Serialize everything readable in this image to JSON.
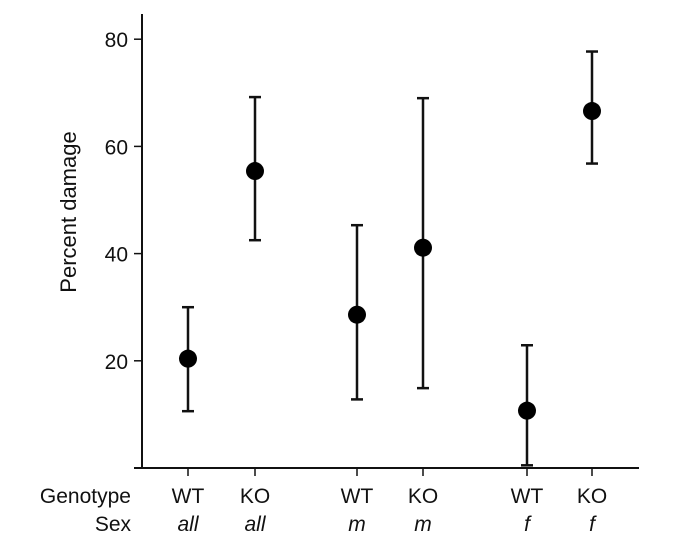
{
  "chart_data": {
    "type": "scatter",
    "title": "",
    "xlabel": "",
    "ylabel": "Percent damage",
    "ylim": [
      0,
      85
    ],
    "yticks": [
      20,
      40,
      60,
      80
    ],
    "grid": false,
    "row_labels": {
      "genotype": "Genotype",
      "sex": "Sex"
    },
    "points": [
      {
        "genotype": "WT",
        "sex": "all",
        "value": 20.4,
        "upper": 30.0,
        "lower": 10.6
      },
      {
        "genotype": "KO",
        "sex": "all",
        "value": 55.4,
        "upper": 69.2,
        "lower": 42.5
      },
      {
        "genotype": "WT",
        "sex": "m",
        "value": 28.6,
        "upper": 45.3,
        "lower": 12.8
      },
      {
        "genotype": "KO",
        "sex": "m",
        "value": 41.1,
        "upper": 69.0,
        "lower": 14.9
      },
      {
        "genotype": "WT",
        "sex": "f",
        "value": 10.7,
        "upper": 22.9,
        "lower": 0.5
      },
      {
        "genotype": "KO",
        "sex": "f",
        "value": 66.6,
        "upper": 77.7,
        "lower": 56.8
      }
    ],
    "marker_color": "#000000"
  }
}
